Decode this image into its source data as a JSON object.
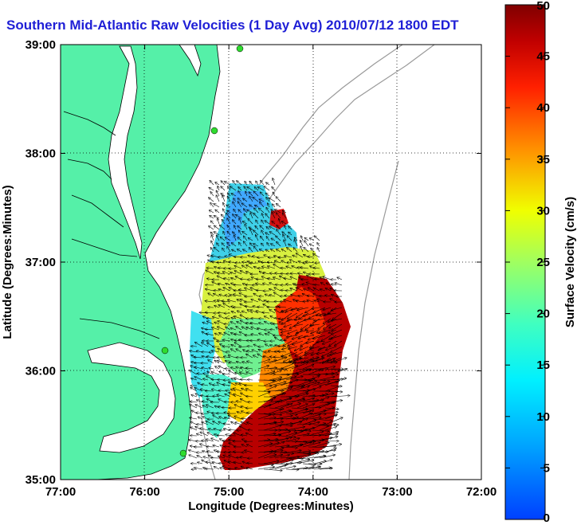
{
  "header": {
    "title": "Southern Mid-Atlantic Raw Velocities (1 Day Avg) 2010/07/12 1800 EDT"
  },
  "map": {
    "x_axis": {
      "label": "Longitude (Degrees:Minutes)",
      "ticks": [
        "77:00",
        "76:00",
        "75:00",
        "74:00",
        "73:00",
        "72:00"
      ]
    },
    "y_axis": {
      "label": "Latitude (Degrees:Minutes)",
      "ticks": [
        "39:00",
        "38:00",
        "37:00",
        "36:00",
        "35:00"
      ]
    },
    "land_color": "#55f0a8",
    "grid": "dotted"
  },
  "colorbar": {
    "label": "Surface Velocity (cm/s)",
    "min": 0,
    "max": 50,
    "ticks": [
      "50",
      "45",
      "40",
      "35",
      "30",
      "25",
      "20",
      "15",
      "10",
      "5",
      "0"
    ]
  }
}
